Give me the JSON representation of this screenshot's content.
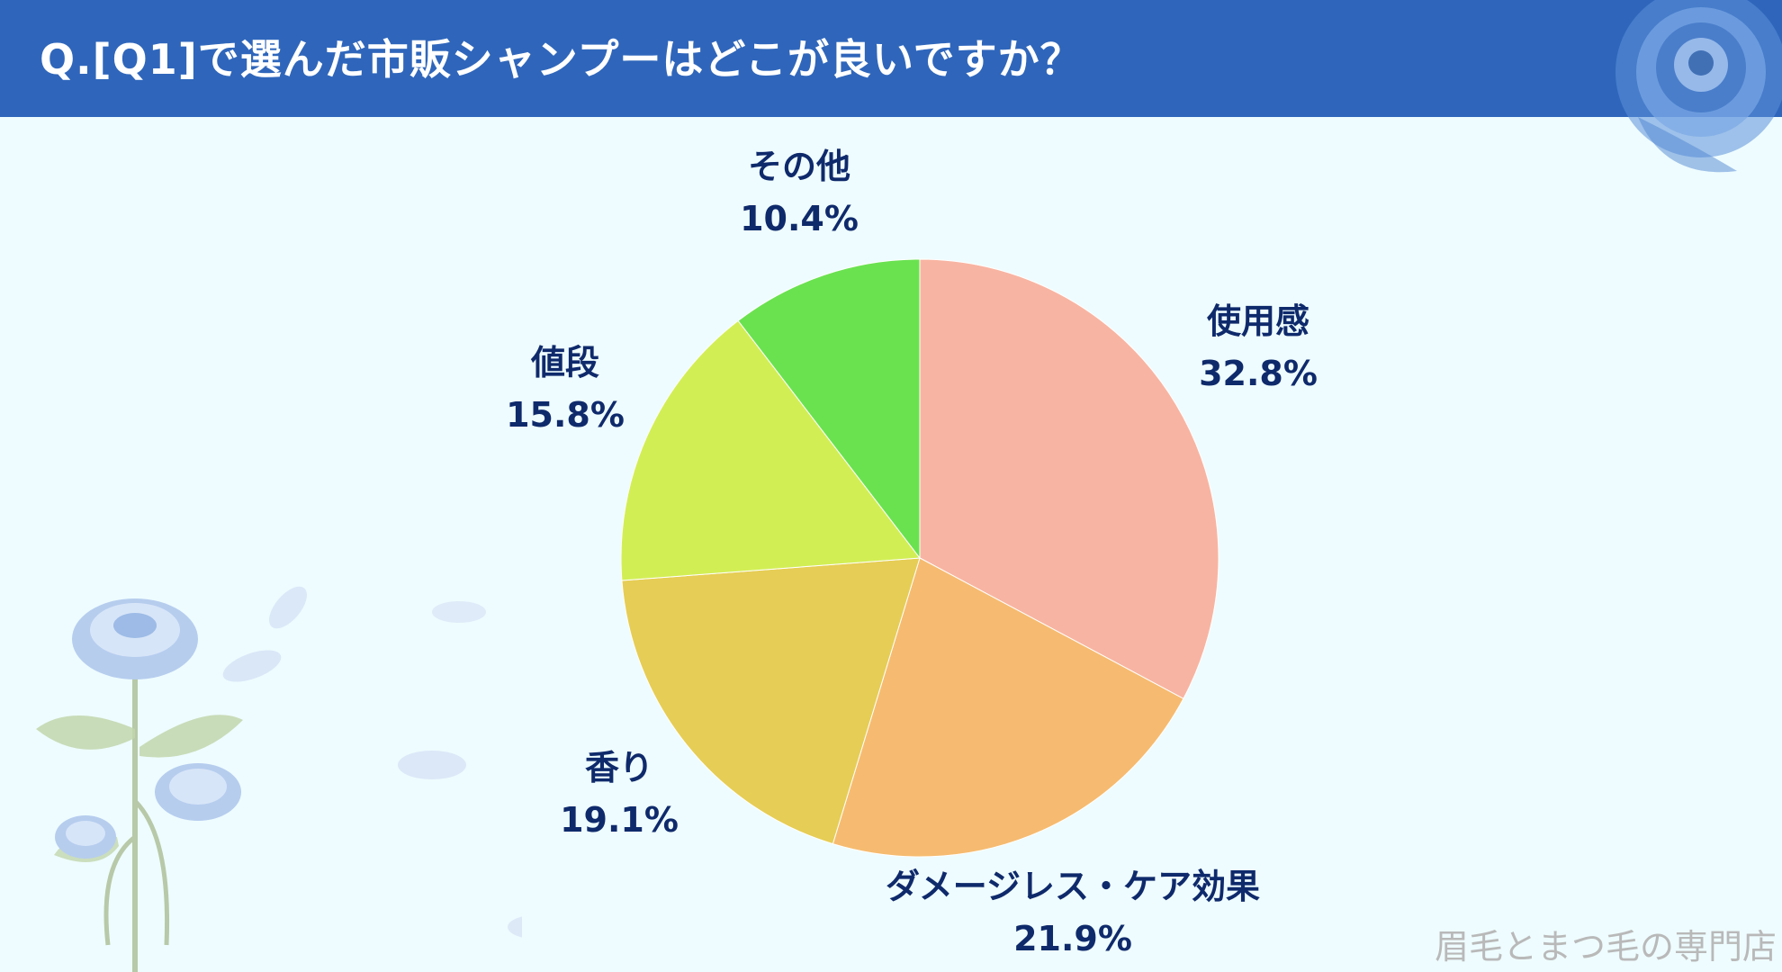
{
  "title": "Q.[Q1]で選んだ市販シャンプーはどこが良いですか？",
  "watermark": "眉毛とまつ毛の専門店",
  "colors": {
    "header": "#2f66bb",
    "background": "#eefcff",
    "label": "#0f2a6b"
  },
  "chart_data": {
    "type": "pie",
    "title": "Q.[Q1]で選んだ市販シャンプーはどこが良いですか？",
    "start_angle": "12 o'clock",
    "direction": "clockwise",
    "unit": "%",
    "slices": [
      {
        "name": "使用感",
        "value": 32.8,
        "label": "32.8%",
        "color": "#f8b4a2"
      },
      {
        "name": "ダメージレス・ケア効果",
        "value": 21.9,
        "label": "21.9%",
        "color": "#f6bb70"
      },
      {
        "name": "香り",
        "value": 19.1,
        "label": "19.1%",
        "color": "#e6cd55"
      },
      {
        "name": "値段",
        "value": 15.8,
        "label": "15.8%",
        "color": "#d2ee55"
      },
      {
        "name": "その他",
        "value": 10.4,
        "label": "10.4%",
        "color": "#6ae250"
      }
    ]
  }
}
